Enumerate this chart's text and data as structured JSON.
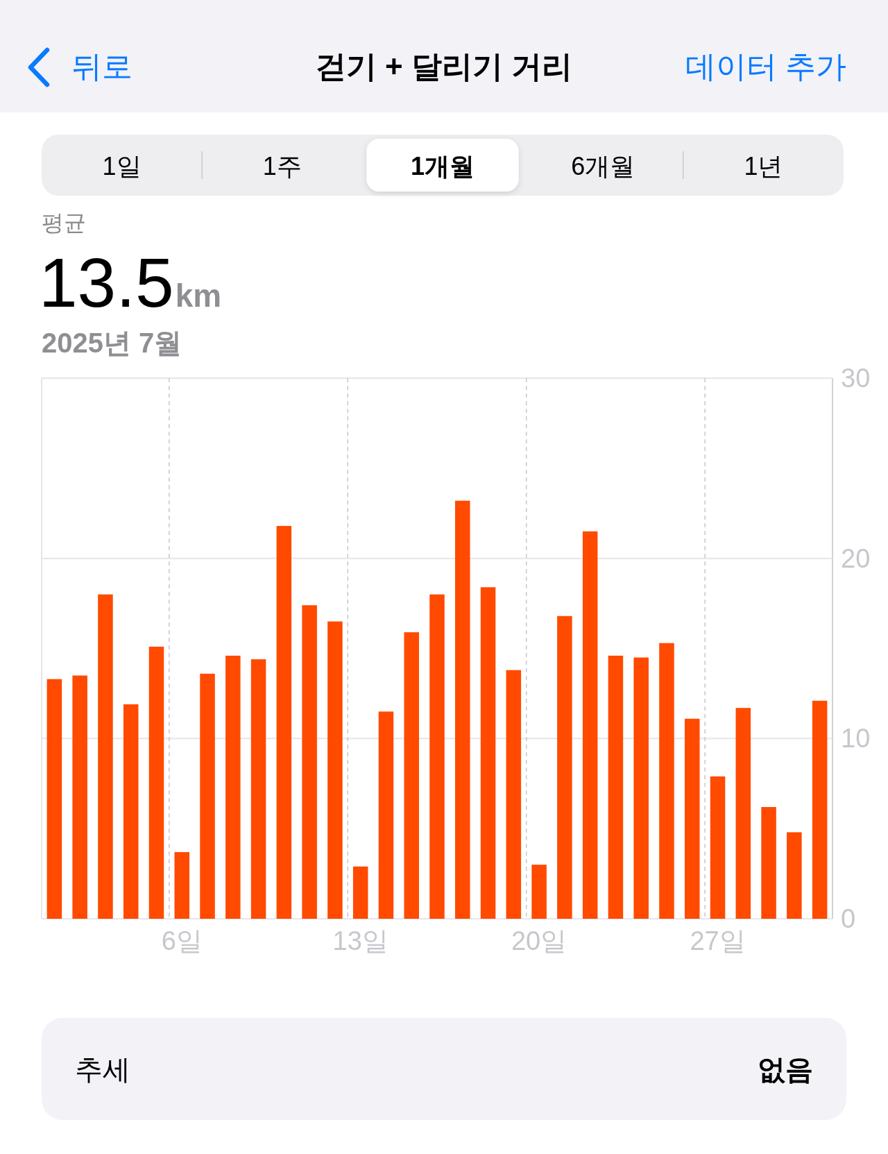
{
  "chart_data": {
    "type": "bar",
    "title": "걷기 + 달리기 거리",
    "subtitle": "2025년 7월",
    "categories": [
      null,
      null,
      null,
      null,
      null,
      "6일",
      null,
      null,
      null,
      null,
      null,
      null,
      "13일",
      null,
      null,
      null,
      null,
      null,
      null,
      "20일",
      null,
      null,
      null,
      null,
      null,
      null,
      "27일",
      null,
      null,
      null,
      null
    ],
    "values": [
      13.3,
      13.5,
      18.0,
      11.9,
      15.1,
      3.7,
      13.6,
      14.6,
      14.4,
      21.8,
      17.4,
      16.5,
      2.9,
      11.5,
      15.9,
      18.0,
      23.2,
      18.4,
      13.8,
      3.0,
      16.8,
      21.5,
      14.6,
      14.5,
      15.3,
      11.1,
      7.9,
      11.7,
      6.2,
      4.8,
      12.1
    ],
    "color": "#ff4a00",
    "ylim": [
      0,
      30
    ],
    "yticks": [
      0,
      10,
      20,
      30
    ],
    "grid": true,
    "annotations": [
      "뒤로",
      "데이터 추가",
      "1일",
      "1주",
      "1개월",
      "6개월",
      "1년",
      "평균",
      "13.5km",
      "추세",
      "없음"
    ]
  }
}
